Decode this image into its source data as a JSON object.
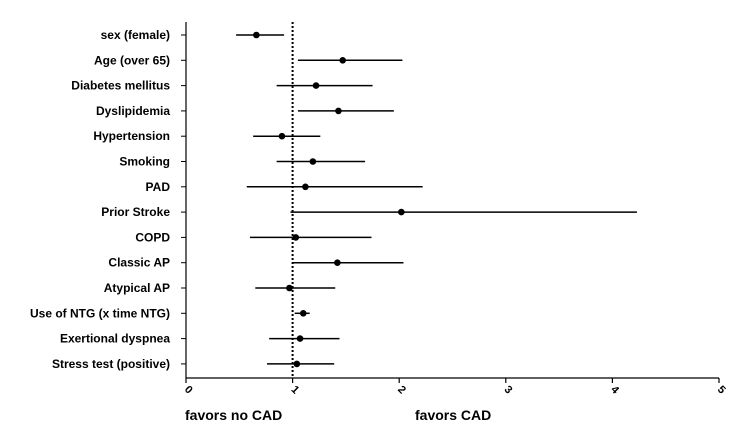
{
  "chart_data": {
    "type": "scatter",
    "subtype": "forest-plot",
    "title": "",
    "xlabel": "",
    "ylabel": "",
    "xlim": [
      0,
      5
    ],
    "xticks": [
      "0",
      "1",
      "2",
      "3",
      "4",
      "5"
    ],
    "reference_line": 1,
    "reference_line_style": "dotted",
    "grid": false,
    "annotations": {
      "left": "favors no CAD",
      "right": "favors CAD"
    },
    "colors": {
      "marker": "#000000",
      "line": "#000000"
    },
    "categories": [
      "sex (female)",
      "Age (over 65)",
      "Diabetes mellitus",
      "Dyslipidemia",
      "Hypertension",
      "Smoking",
      "PAD",
      "Prior Stroke",
      "COPD",
      "Classic AP",
      "Atypical AP",
      "Use of NTG (x time NTG)",
      "Exertional dyspnea",
      "Stress test (positive)"
    ],
    "estimates": [
      0.66,
      1.47,
      1.22,
      1.43,
      0.9,
      1.19,
      1.12,
      2.02,
      1.03,
      1.42,
      0.97,
      1.1,
      1.07,
      1.04
    ],
    "ci_low": [
      0.47,
      1.05,
      0.85,
      1.05,
      0.63,
      0.85,
      0.57,
      0.98,
      0.6,
      1.0,
      0.65,
      1.02,
      0.78,
      0.76
    ],
    "ci_high": [
      0.92,
      2.03,
      1.75,
      1.95,
      1.26,
      1.68,
      2.22,
      4.23,
      1.74,
      2.04,
      1.4,
      1.16,
      1.44,
      1.39
    ]
  }
}
